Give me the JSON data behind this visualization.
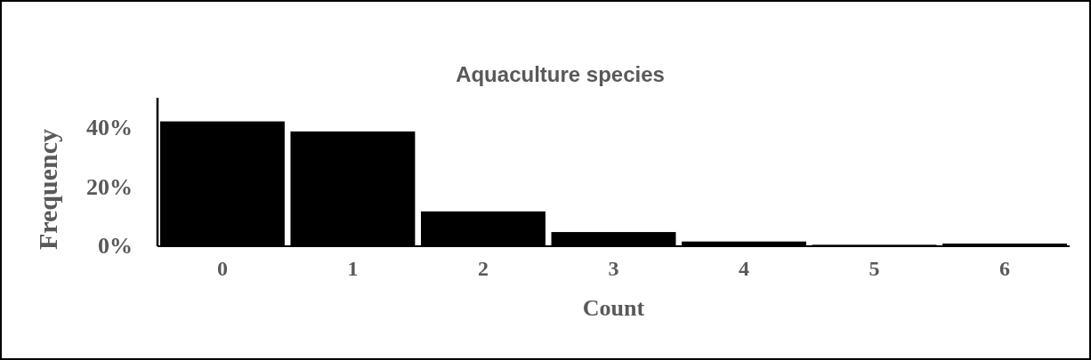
{
  "chart_data": {
    "type": "bar",
    "title": "Aquaculture species",
    "xlabel": "Count",
    "ylabel": "Frequency",
    "categories": [
      "0",
      "1",
      "2",
      "3",
      "4",
      "5",
      "6"
    ],
    "values": [
      42,
      38.6,
      11.5,
      4.5,
      1.3,
      0.2,
      0.6
    ],
    "color": "#000000",
    "ylim": [
      0,
      50
    ],
    "yticks": [
      {
        "value": 0,
        "label": "0%"
      },
      {
        "value": 20,
        "label": "20%"
      },
      {
        "value": 40,
        "label": "40%"
      }
    ],
    "grid": false
  }
}
